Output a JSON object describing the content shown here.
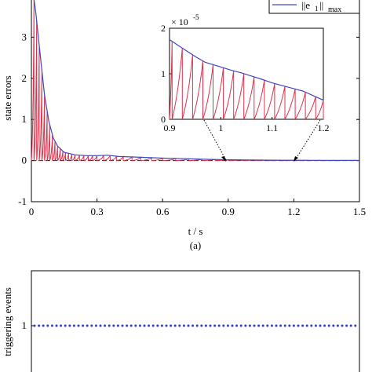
{
  "chart_data": [
    {
      "type": "line",
      "ylabel": "state errors",
      "xlabel": "t / s",
      "caption": "(a)",
      "xlim": [
        0,
        1.5
      ],
      "ylim": [
        -1,
        4
      ],
      "xticks": [
        "0",
        "0.3",
        "0.6",
        "0.9",
        "1.2",
        "1.5"
      ],
      "yticks": [
        "-1",
        "0",
        "1",
        "2",
        "3"
      ],
      "legend": {
        "position": "top-right",
        "label_main": "||e",
        "label_sub": "1",
        "label_end": "||",
        "label_max": "max",
        "color": "#3b48c0"
      },
      "series": [
        {
          "color": "#3b48c0",
          "envelope_x": [
            0.0,
            0.01,
            0.02,
            0.04,
            0.06,
            0.08,
            0.1,
            0.12,
            0.15,
            0.2,
            0.25,
            0.3,
            0.35,
            0.4,
            0.5,
            0.6,
            0.7,
            0.8,
            0.9,
            1.0,
            1.1,
            1.2,
            1.3,
            1.4,
            1.5
          ],
          "envelope_y": [
            4.2,
            4.0,
            3.6,
            2.6,
            1.6,
            0.95,
            0.55,
            0.35,
            0.2,
            0.14,
            0.12,
            0.12,
            0.13,
            0.1,
            0.08,
            0.06,
            0.045,
            0.03,
            0.02,
            0.015,
            0.01,
            0.008,
            0.006,
            0.004,
            0.003
          ]
        },
        {
          "color": "#e0304a",
          "triggers": [
            0.012,
            0.024,
            0.036,
            0.048,
            0.06,
            0.072,
            0.084,
            0.096,
            0.108,
            0.12,
            0.132,
            0.144,
            0.156,
            0.17,
            0.185,
            0.2,
            0.22,
            0.24,
            0.26,
            0.28,
            0.3,
            0.33,
            0.36,
            0.39,
            0.42,
            0.46,
            0.5,
            0.55,
            0.6,
            0.66,
            0.72,
            0.78,
            0.84,
            0.9,
            0.96,
            1.02,
            1.08,
            1.14,
            1.2,
            1.26,
            1.32,
            1.38,
            1.44
          ]
        }
      ],
      "inset": {
        "exponent_label": "× 10",
        "exponent": "-5",
        "xlim": [
          0.9,
          1.2
        ],
        "ylim": [
          0,
          2
        ],
        "xticks": [
          "0.9",
          "1",
          "1.1",
          "1.2"
        ],
        "yticks": [
          "0",
          "1",
          "2"
        ],
        "envelope_x": [
          0.9,
          0.92,
          0.95,
          0.97,
          1.0,
          1.02,
          1.04,
          1.06,
          1.08,
          1.1,
          1.12,
          1.14,
          1.16,
          1.18,
          1.2
        ],
        "envelope_y": [
          1.75,
          1.6,
          1.38,
          1.25,
          1.15,
          1.08,
          1.02,
          0.95,
          0.88,
          0.8,
          0.74,
          0.68,
          0.62,
          0.52,
          0.42
        ],
        "triggers": [
          0.905,
          0.925,
          0.945,
          0.965,
          0.985,
          1.005,
          1.025,
          1.045,
          1.065,
          1.085,
          1.105,
          1.125,
          1.145,
          1.165,
          1.185,
          1.2
        ]
      }
    },
    {
      "type": "scatter",
      "ylabel": "triggering events",
      "yticks": [
        "1"
      ],
      "ylim": [
        0,
        2
      ],
      "xlim": [
        0,
        1.5
      ],
      "color": "#2b3cc0",
      "y_value": 1
    }
  ]
}
